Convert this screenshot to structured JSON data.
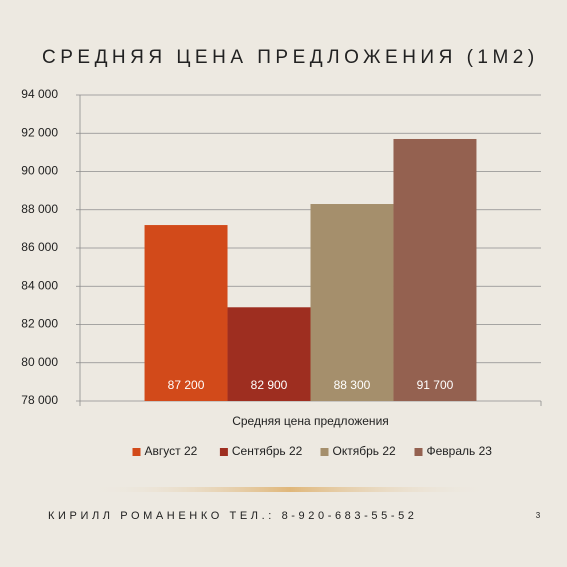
{
  "chart_data": {
    "type": "bar",
    "title": "СРЕДНЯЯ ЦЕНА ПРЕДЛОЖЕНИЯ (1М2)",
    "categories": [
      "Средняя цена предложения"
    ],
    "series": [
      {
        "name": "Август 22",
        "color": "#d24a1a",
        "values": [
          87200
        ],
        "value_labels": [
          "87 200"
        ]
      },
      {
        "name": "Сентябрь 22",
        "color": "#9e2e20",
        "values": [
          82900
        ],
        "value_labels": [
          "82 900"
        ]
      },
      {
        "name": "Октябрь 22",
        "color": "#a58f6c",
        "values": [
          88300
        ],
        "value_labels": [
          "88 300"
        ]
      },
      {
        "name": "Февраль 23",
        "color": "#946150",
        "values": [
          91700
        ],
        "value_labels": [
          "91 700"
        ]
      }
    ],
    "ylim": [
      78000,
      94000
    ],
    "yticks": [
      {
        "value": 78000,
        "label": "78 000"
      },
      {
        "value": 80000,
        "label": "80 000"
      },
      {
        "value": 82000,
        "label": "82 000"
      },
      {
        "value": 84000,
        "label": "84 000"
      },
      {
        "value": 86000,
        "label": "86 000"
      },
      {
        "value": 88000,
        "label": "88 000"
      },
      {
        "value": 90000,
        "label": "90 000"
      },
      {
        "value": 92000,
        "label": "92 000"
      },
      {
        "value": 94000,
        "label": "94 000"
      }
    ],
    "grid": true,
    "legend": "bottom"
  },
  "footer": {
    "text": "КИРИЛЛ РОМАНЕНКО ТЕЛ.: 8-920-683-55-52",
    "page": "3"
  }
}
